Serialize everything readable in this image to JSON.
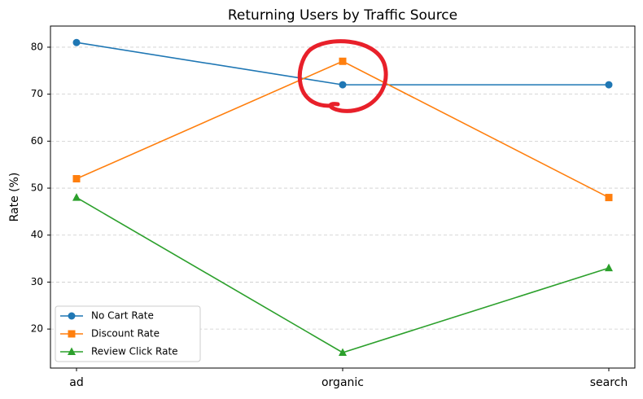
{
  "chart_data": {
    "type": "line",
    "title": "Returning Users by Traffic Source",
    "y_label": "Rate (%)",
    "categories": [
      "ad",
      "organic",
      "search"
    ],
    "series": [
      {
        "name": "No Cart Rate",
        "color": "#1f77b4",
        "marker": "circle",
        "values": [
          81,
          72,
          72
        ]
      },
      {
        "name": "Discount Rate",
        "color": "#ff7f0e",
        "marker": "square",
        "values": [
          52,
          77,
          48
        ]
      },
      {
        "name": "Review Click Rate",
        "color": "#2ca02c",
        "marker": "triangle",
        "values": [
          48,
          15,
          33
        ]
      }
    ],
    "ylim": [
      11.7,
      84.5
    ],
    "yticks": [
      20,
      30,
      40,
      50,
      60,
      70,
      80
    ],
    "grid": true,
    "legend": "lower left"
  }
}
